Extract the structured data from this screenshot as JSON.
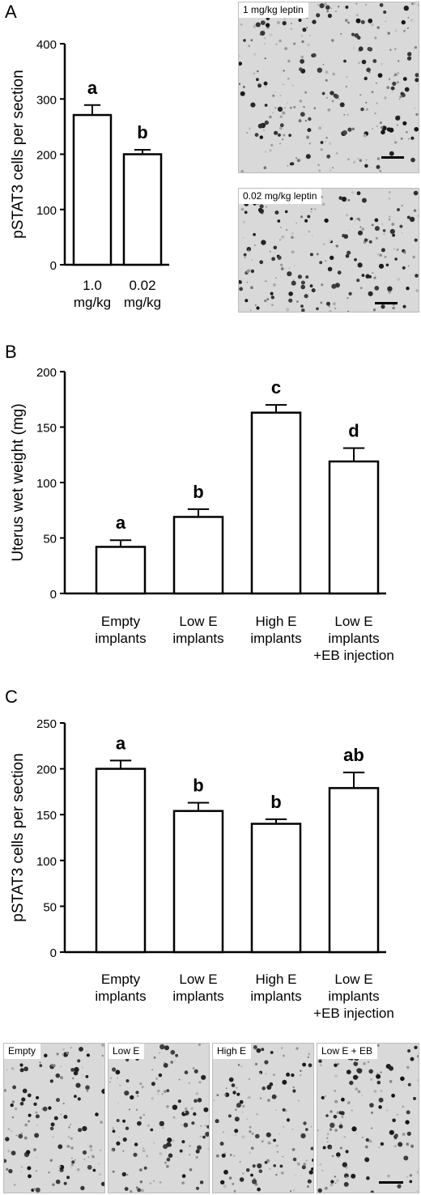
{
  "panels": [
    {
      "letter": "A"
    },
    {
      "letter": "B"
    },
    {
      "letter": "C"
    }
  ],
  "chart_data": [
    {
      "type": "bar",
      "panel": "A",
      "ylabel": "pSTAT3 cells per section",
      "ylim": [
        0,
        400
      ],
      "yticks": [
        0,
        100,
        200,
        300,
        400
      ],
      "categories": [
        [
          "1.0",
          "mg/kg"
        ],
        [
          "0.02",
          "mg/kg"
        ]
      ],
      "values": [
        271,
        200
      ],
      "errors": [
        18,
        8
      ],
      "significance_letters": [
        "a",
        "b"
      ]
    },
    {
      "type": "bar",
      "panel": "B",
      "ylabel": "Uterus wet weight (mg)",
      "ylim": [
        0,
        200
      ],
      "yticks": [
        0,
        50,
        100,
        150,
        200
      ],
      "categories": [
        [
          "Empty",
          "implants"
        ],
        [
          "Low E",
          "implants"
        ],
        [
          "High E",
          "implants"
        ],
        [
          "Low E",
          "implants",
          "+EB injection"
        ]
      ],
      "values": [
        42,
        69,
        163,
        119
      ],
      "errors": [
        6,
        7,
        7,
        12
      ],
      "significance_letters": [
        "a",
        "b",
        "c",
        "d"
      ]
    },
    {
      "type": "bar",
      "panel": "C",
      "ylabel": "pSTAT3 cells per section",
      "ylim": [
        0,
        250
      ],
      "yticks": [
        0,
        50,
        100,
        150,
        200,
        250
      ],
      "categories": [
        [
          "Empty",
          "implants"
        ],
        [
          "Low E",
          "implants"
        ],
        [
          "High E",
          "implants"
        ],
        [
          "Low E",
          "implants",
          "+EB injection"
        ]
      ],
      "values": [
        200,
        154,
        140,
        179
      ],
      "errors": [
        9,
        9,
        5,
        17
      ],
      "significance_letters": [
        "a",
        "b",
        "b",
        "ab"
      ]
    }
  ],
  "micrographs": {
    "panel_a": [
      "1 mg/kg leptin",
      "0.02 mg/kg leptin"
    ],
    "panel_c": [
      "Empty",
      "Low E",
      "High E",
      "Low E + EB"
    ]
  }
}
